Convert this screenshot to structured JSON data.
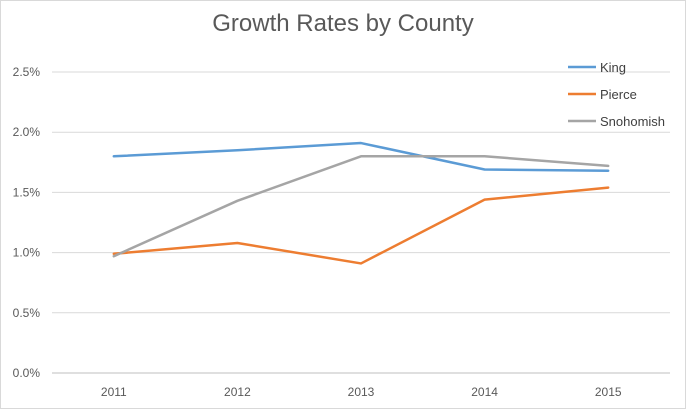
{
  "chart_data": {
    "type": "line",
    "title": "Growth Rates by County",
    "xlabel": "",
    "ylabel": "",
    "categories": [
      "2011",
      "2012",
      "2013",
      "2014",
      "2015"
    ],
    "ylim": [
      0,
      0.025
    ],
    "yticks": [
      0,
      0.005,
      0.01,
      0.015,
      0.02,
      0.025
    ],
    "ytick_labels": [
      "0.0%",
      "0.5%",
      "1.0%",
      "1.5%",
      "2.0%",
      "2.5%"
    ],
    "grid": true,
    "legend_position": "top-right",
    "series": [
      {
        "name": "King",
        "color": "#5b9bd5",
        "values": [
          0.018,
          0.0185,
          0.0191,
          0.0169,
          0.0168
        ]
      },
      {
        "name": "Pierce",
        "color": "#ed7d31",
        "values": [
          0.0099,
          0.0108,
          0.0091,
          0.0144,
          0.0154
        ]
      },
      {
        "name": "Snohomish",
        "color": "#a5a5a5",
        "values": [
          0.0097,
          0.0143,
          0.018,
          0.018,
          0.0172
        ]
      }
    ]
  }
}
